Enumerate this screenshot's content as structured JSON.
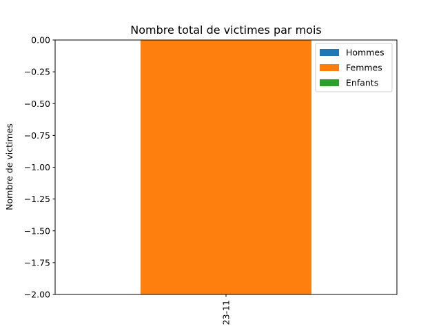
{
  "chart_data": {
    "type": "bar",
    "stacked": true,
    "title": "Nombre total de victimes par mois",
    "xlabel": "",
    "ylabel": "Nombre de victimes",
    "categories": [
      "23-11"
    ],
    "series": [
      {
        "name": "Hommes",
        "values": [
          0
        ],
        "color": "#1f77b4"
      },
      {
        "name": "Femmes",
        "values": [
          -2
        ],
        "color": "#ff7f0e"
      },
      {
        "name": "Enfants",
        "values": [
          0
        ],
        "color": "#2ca02c"
      }
    ],
    "ylim": [
      -2.0,
      0.0
    ],
    "yticks": [
      "0.00",
      "−0.25",
      "−0.50",
      "−0.75",
      "−1.00",
      "−1.25",
      "−1.50",
      "−1.75",
      "−2.00"
    ],
    "ytick_values": [
      0,
      -0.25,
      -0.5,
      -0.75,
      -1.0,
      -1.25,
      -1.5,
      -1.75,
      -2.0
    ],
    "grid": false,
    "legend_position": "top-right"
  }
}
